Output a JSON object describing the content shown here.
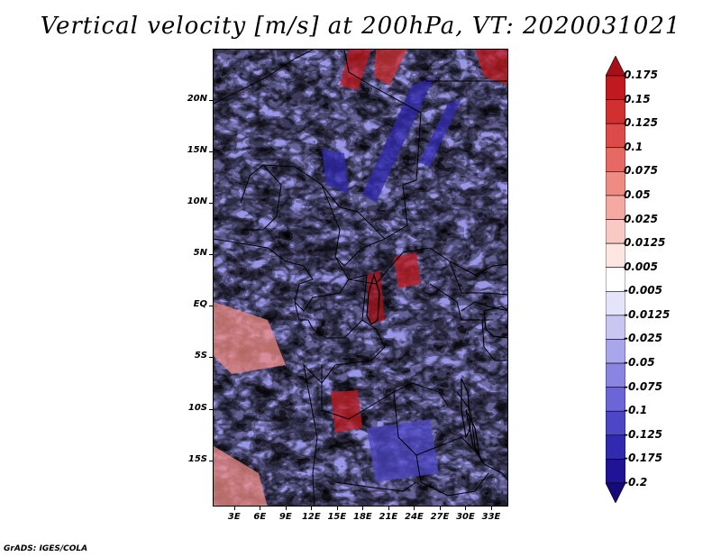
{
  "title": "Vertical velocity [m/s] at 200hPa, VT: 2020031021",
  "footer": "GrADS: IGES/COLA",
  "lat_labels": [
    "20N",
    "15N",
    "10N",
    "5N",
    "EQ",
    "5S",
    "10S",
    "15S"
  ],
  "lat_values": [
    20,
    15,
    10,
    5,
    0,
    -5,
    -10,
    -15
  ],
  "lon_labels": [
    "3E",
    "6E",
    "9E",
    "12E",
    "15E",
    "18E",
    "21E",
    "24E",
    "27E",
    "30E",
    "33E"
  ],
  "lon_values": [
    3,
    6,
    9,
    12,
    15,
    18,
    21,
    24,
    27,
    30,
    33
  ],
  "map_extent": {
    "lon_min": 0.5,
    "lon_max": 35.0,
    "lat_min": -19.5,
    "lat_max": 25.0
  },
  "colorbar": {
    "labels": [
      "0.175",
      "0.15",
      "0.125",
      "0.1",
      "0.075",
      "0.05",
      "0.025",
      "0.0125",
      "0.005",
      "-0.005",
      "-0.0125",
      "-0.025",
      "-0.05",
      "-0.075",
      "-0.1",
      "-0.125",
      "-0.175",
      "-0.2"
    ],
    "colors": [
      "#a50f15",
      "#c0191e",
      "#d03030",
      "#dd4b48",
      "#e66a63",
      "#ee8b83",
      "#f4aaa3",
      "#f9c9c3",
      "#fde6e2",
      "#ffffff",
      "#e6e4fb",
      "#c9c6f4",
      "#aaa6ec",
      "#8a85e2",
      "#6b65d6",
      "#4d47c6",
      "#3129b0",
      "#1f1496",
      "#140a7a"
    ]
  }
}
